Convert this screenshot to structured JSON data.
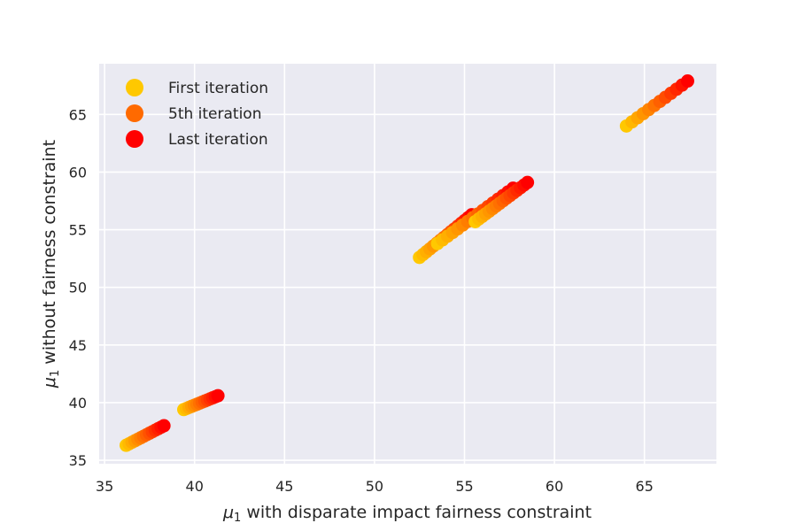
{
  "chart_data": {
    "type": "scatter",
    "xlabel_var": "μ",
    "xlabel_sub": "1",
    "xlabel_rest": " with disparate impact fairness constraint",
    "ylabel_var": "μ",
    "ylabel_sub": "1",
    "ylabel_rest": " without fairness constraint",
    "xlim": [
      34.7,
      69
    ],
    "ylim": [
      34.7,
      69.4
    ],
    "xticks": [
      35,
      40,
      45,
      50,
      55,
      60,
      65
    ],
    "yticks": [
      35,
      40,
      45,
      50,
      55,
      60,
      65
    ],
    "grid": true,
    "legend_position": "top-left",
    "colors": {
      "first": "#FFC800",
      "fifth": "#FF6A00",
      "last": "#FF0000",
      "background": "#EAEAF2",
      "grid": "#FFFFFF"
    },
    "legend": [
      {
        "label": "First iteration",
        "color": "#FFC800"
      },
      {
        "label": "5th iteration",
        "color": "#FF6A00"
      },
      {
        "label": "Last iteration",
        "color": "#FF0000"
      }
    ],
    "clusters": [
      {
        "start": [
          36.2,
          36.3
        ],
        "end": [
          38.3,
          38.0
        ],
        "n": 14
      },
      {
        "start": [
          39.4,
          39.4
        ],
        "end": [
          41.3,
          40.6
        ],
        "n": 14
      },
      {
        "start": [
          52.5,
          52.6
        ],
        "end": [
          55.4,
          56.3
        ],
        "n": 16
      },
      {
        "start": [
          53.5,
          53.8
        ],
        "end": [
          57.7,
          58.6
        ],
        "n": 16
      },
      {
        "start": [
          55.6,
          55.7
        ],
        "end": [
          58.5,
          59.1
        ],
        "n": 16
      },
      {
        "start": [
          64.0,
          64.0
        ],
        "end": [
          67.4,
          67.9
        ],
        "n": 12
      }
    ]
  }
}
